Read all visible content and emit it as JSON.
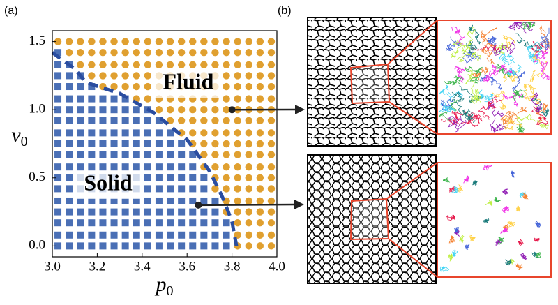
{
  "panel_labels": [
    "(a)",
    "(b)"
  ],
  "chart_data": {
    "type": "phase-grid",
    "xlabel": {
      "text": "p",
      "sub": "0"
    },
    "ylabel": {
      "text": "v",
      "sub": "0"
    },
    "xlim": [
      3.0,
      4.0
    ],
    "ylim": [
      -0.08,
      1.58
    ],
    "xticks": [
      {
        "value": 3.0,
        "label": "3.0"
      },
      {
        "value": 3.2,
        "label": "3.2"
      },
      {
        "value": 3.4,
        "label": "3.4"
      },
      {
        "value": 3.6,
        "label": "3.6"
      },
      {
        "value": 3.8,
        "label": "3.8"
      },
      {
        "value": 4.0,
        "label": "4.0"
      }
    ],
    "yticks": [
      {
        "value": 0.0,
        "label": "0.0"
      },
      {
        "value": 0.5,
        "label": "0.5"
      },
      {
        "value": 1.0,
        "label": "1.0"
      },
      {
        "value": 1.5,
        "label": "1.5"
      }
    ],
    "grid_x": [
      3.025,
      3.075,
      3.125,
      3.175,
      3.225,
      3.275,
      3.325,
      3.375,
      3.425,
      3.475,
      3.525,
      3.575,
      3.625,
      3.675,
      3.725,
      3.775,
      3.825,
      3.875,
      3.925,
      3.975
    ],
    "grid_y": [
      0.0,
      0.08,
      0.17,
      0.25,
      0.33,
      0.42,
      0.5,
      0.58,
      0.67,
      0.75,
      0.83,
      0.92,
      1.0,
      1.08,
      1.17,
      1.25,
      1.33,
      1.42,
      1.5
    ],
    "fluid_onset_x": [
      3.825,
      3.825,
      3.825,
      3.775,
      3.775,
      3.725,
      3.725,
      3.675,
      3.675,
      3.625,
      3.575,
      3.525,
      3.475,
      3.375,
      3.225,
      3.175,
      3.125,
      3.075,
      3.025
    ],
    "solid_color": "#4a6fb5",
    "fluid_color": "#e0a030",
    "boundary": {
      "color": "#2a4da0",
      "x": [
        3.0,
        3.1,
        3.15,
        3.3,
        3.45,
        3.6,
        3.7,
        3.76,
        3.8,
        3.82
      ],
      "y": [
        1.42,
        1.3,
        1.2,
        1.12,
        0.98,
        0.78,
        0.55,
        0.35,
        0.18,
        0.0
      ]
    },
    "labels": {
      "fluid": "Fluid",
      "solid": "Solid"
    },
    "arrows": [
      {
        "x": 3.8,
        "y": 1.0
      },
      {
        "x": 3.65,
        "y": 0.3
      }
    ]
  }
}
